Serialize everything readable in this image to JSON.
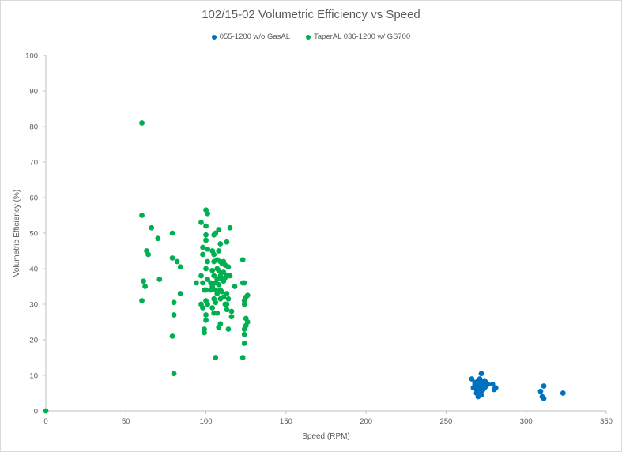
{
  "chart_data": {
    "type": "scatter",
    "title": "102/15-02 Volumetric Efficiency vs Speed",
    "xlabel": "Speed (RPM)",
    "ylabel": "Volumetric Efficiency (%)",
    "xlim": [
      0,
      350
    ],
    "ylim": [
      0,
      100
    ],
    "x_ticks": [
      0,
      50,
      100,
      150,
      200,
      250,
      300,
      350
    ],
    "y_ticks": [
      0,
      10,
      20,
      30,
      40,
      50,
      60,
      70,
      80,
      90,
      100
    ],
    "grid": false,
    "legend_position": "top",
    "series": [
      {
        "name": "055-1200 w/o GasAL",
        "color": "#0070c0",
        "points": [
          [
            266,
            9
          ],
          [
            268,
            7.5
          ],
          [
            270,
            8.5
          ],
          [
            272,
            10.5
          ],
          [
            271,
            9
          ],
          [
            273,
            8
          ],
          [
            275,
            8
          ],
          [
            267,
            6.5
          ],
          [
            269,
            6
          ],
          [
            270,
            5
          ],
          [
            271,
            4.5
          ],
          [
            270,
            4
          ],
          [
            272,
            5.5
          ],
          [
            273,
            6.5
          ],
          [
            274,
            7
          ],
          [
            269,
            7
          ],
          [
            270,
            7.5
          ],
          [
            271,
            8
          ],
          [
            272,
            7
          ],
          [
            273,
            7.5
          ],
          [
            268,
            6.5
          ],
          [
            269,
            5
          ],
          [
            271,
            6
          ],
          [
            272,
            6
          ],
          [
            274,
            6.5
          ],
          [
            276,
            7.5
          ],
          [
            279,
            7.5
          ],
          [
            281,
            6.5
          ],
          [
            280,
            6
          ],
          [
            270,
            6.5
          ],
          [
            271,
            7
          ],
          [
            268,
            8
          ],
          [
            272,
            8.5
          ],
          [
            273,
            6
          ],
          [
            270,
            5.5
          ],
          [
            269,
            8
          ],
          [
            274,
            8.5
          ],
          [
            275,
            7
          ],
          [
            271,
            5
          ],
          [
            272,
            4.5
          ],
          [
            309,
            5.5
          ],
          [
            311,
            7
          ],
          [
            310,
            4
          ],
          [
            311,
            3.5
          ],
          [
            323,
            5
          ]
        ]
      },
      {
        "name": "TaperAL 036-1200 w/ GS700",
        "color": "#00b050",
        "points": [
          [
            60,
            81
          ],
          [
            60,
            55
          ],
          [
            60,
            31
          ],
          [
            61,
            36.5
          ],
          [
            62,
            35
          ],
          [
            63,
            45
          ],
          [
            64,
            44
          ],
          [
            66,
            51.5
          ],
          [
            70,
            48.5
          ],
          [
            71,
            37
          ],
          [
            79,
            50
          ],
          [
            79,
            43
          ],
          [
            79,
            21
          ],
          [
            80,
            10.5
          ],
          [
            80,
            30.5
          ],
          [
            80,
            27
          ],
          [
            82,
            42
          ],
          [
            84,
            40.5
          ],
          [
            84,
            33
          ],
          [
            94,
            36
          ],
          [
            97,
            53
          ],
          [
            97,
            38
          ],
          [
            97,
            30
          ],
          [
            98,
            46
          ],
          [
            98,
            44
          ],
          [
            98,
            36
          ],
          [
            98,
            29
          ],
          [
            99,
            34
          ],
          [
            99,
            23
          ],
          [
            99,
            22
          ],
          [
            100,
            56.5
          ],
          [
            100,
            52
          ],
          [
            100,
            49.5
          ],
          [
            100,
            48
          ],
          [
            100,
            40
          ],
          [
            100,
            34
          ],
          [
            100,
            31
          ],
          [
            100,
            27
          ],
          [
            100,
            25.5
          ],
          [
            101,
            55.5
          ],
          [
            101,
            45.5
          ],
          [
            101,
            42
          ],
          [
            101,
            37
          ],
          [
            101,
            30
          ],
          [
            103,
            36
          ],
          [
            103,
            34
          ],
          [
            104,
            45
          ],
          [
            104,
            39.5
          ],
          [
            104,
            35
          ],
          [
            104,
            29
          ],
          [
            105,
            49.5
          ],
          [
            105,
            44
          ],
          [
            105,
            42
          ],
          [
            105,
            38
          ],
          [
            105,
            31.5
          ],
          [
            105,
            27.5
          ],
          [
            106,
            50
          ],
          [
            106,
            36
          ],
          [
            106,
            34
          ],
          [
            106,
            15
          ],
          [
            106,
            30.5
          ],
          [
            107,
            42.5
          ],
          [
            107,
            40
          ],
          [
            107,
            37
          ],
          [
            107,
            33
          ],
          [
            107,
            27.5
          ],
          [
            108,
            51
          ],
          [
            108,
            45
          ],
          [
            108,
            39.5
          ],
          [
            108,
            35.5
          ],
          [
            108,
            23.5
          ],
          [
            109,
            47
          ],
          [
            109,
            42
          ],
          [
            109,
            38
          ],
          [
            109,
            34
          ],
          [
            109,
            31.5
          ],
          [
            109,
            24.5
          ],
          [
            110,
            41.5
          ],
          [
            110,
            37
          ],
          [
            110,
            33.5
          ],
          [
            111,
            42
          ],
          [
            111,
            39
          ],
          [
            111,
            36.5
          ],
          [
            111,
            32
          ],
          [
            112,
            41
          ],
          [
            112,
            37.5
          ],
          [
            112,
            30
          ],
          [
            113,
            47.5
          ],
          [
            113,
            38
          ],
          [
            113,
            33
          ],
          [
            113,
            30
          ],
          [
            113,
            28.5
          ],
          [
            114,
            40.5
          ],
          [
            114,
            31.5
          ],
          [
            114,
            23
          ],
          [
            115,
            51.5
          ],
          [
            115,
            38
          ],
          [
            116,
            28
          ],
          [
            116,
            26.5
          ],
          [
            118,
            35
          ],
          [
            123,
            42.5
          ],
          [
            123,
            36
          ],
          [
            123,
            15
          ],
          [
            124,
            36
          ],
          [
            124,
            31
          ],
          [
            124,
            30
          ],
          [
            124,
            23
          ],
          [
            124,
            21.5
          ],
          [
            124,
            19
          ],
          [
            125,
            32
          ],
          [
            125,
            26
          ],
          [
            125,
            24
          ],
          [
            126,
            32.5
          ],
          [
            126,
            25
          ]
        ]
      },
      {
        "name": "",
        "color": "#00b050",
        "points": [
          [
            0,
            0
          ]
        ]
      }
    ]
  }
}
